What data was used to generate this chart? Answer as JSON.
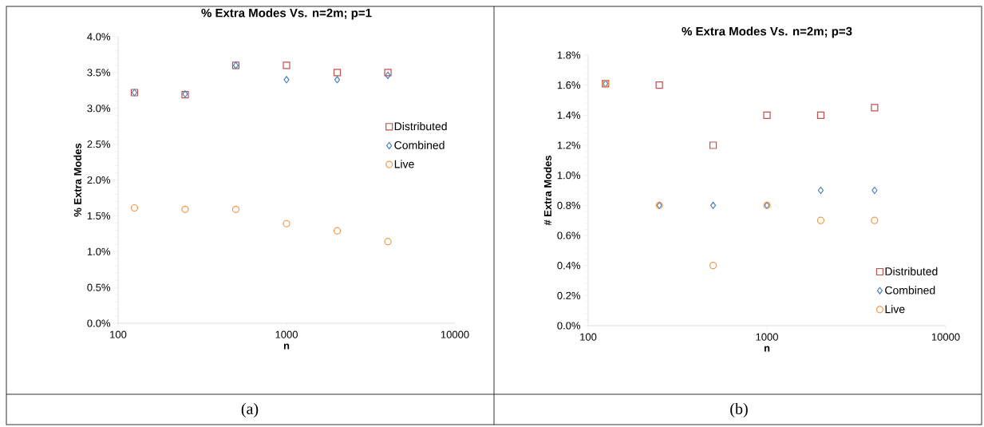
{
  "chart_data": [
    {
      "type": "scatter",
      "title": "% Extra Modes Vs. n=2m; p=1",
      "xlabel": "n",
      "ylabel": "% Extra Modes",
      "log": "x",
      "x": [
        125,
        250,
        500,
        1000,
        2000,
        4000
      ],
      "series": [
        {
          "name": "Distributed",
          "color": "#c0504d",
          "marker": "square",
          "values": [
            3.22,
            3.19,
            3.6,
            3.6,
            3.5,
            3.5
          ]
        },
        {
          "name": "Combined",
          "color": "#4f81bd",
          "marker": "diamond",
          "values": [
            3.22,
            3.2,
            3.6,
            3.4,
            3.4,
            3.46
          ]
        },
        {
          "name": "Live",
          "color": "#f79646",
          "marker": "circle",
          "values": [
            1.61,
            1.59,
            1.59,
            1.39,
            1.29,
            1.14
          ]
        }
      ],
      "xlim": [
        100,
        10000
      ],
      "xticks": [
        100,
        1000,
        10000
      ],
      "ylim": [
        0,
        4
      ],
      "yticks": [
        {
          "value": 0,
          "label": "0.0%"
        },
        {
          "value": 0.5,
          "label": "0.5%"
        },
        {
          "value": 1,
          "label": "1.0%"
        },
        {
          "value": 1.5,
          "label": "1.5%"
        },
        {
          "value": 2,
          "label": "2.0%"
        },
        {
          "value": 2.5,
          "label": "2.5%"
        },
        {
          "value": 3,
          "label": "3.0%"
        },
        {
          "value": 3.5,
          "label": "3.5%"
        },
        {
          "value": 4,
          "label": "4.0%"
        }
      ],
      "legend": "right",
      "grid": false,
      "annotations": [
        "(a)"
      ]
    },
    {
      "type": "scatter",
      "title": "% Extra Modes Vs. n=2m; p=3",
      "xlabel": "n",
      "ylabel": "# Extra Modes",
      "log": "x",
      "x": [
        125,
        250,
        500,
        1000,
        2000,
        4000
      ],
      "series": [
        {
          "name": "Distributed",
          "color": "#c0504d",
          "marker": "square",
          "values": [
            1.61,
            1.6,
            1.2,
            1.4,
            1.4,
            1.45
          ]
        },
        {
          "name": "Combined",
          "color": "#4f81bd",
          "marker": "diamond",
          "values": [
            1.61,
            0.8,
            0.8,
            0.8,
            0.9,
            0.9
          ]
        },
        {
          "name": "Live",
          "color": "#f79646",
          "marker": "circle",
          "values": [
            1.61,
            0.8,
            0.4,
            0.8,
            0.7,
            0.7
          ]
        }
      ],
      "xlim": [
        100,
        10000
      ],
      "xticks": [
        100,
        1000,
        10000
      ],
      "ylim": [
        0,
        1.8
      ],
      "yticks": [
        {
          "value": 0,
          "label": "0.0%"
        },
        {
          "value": 0.2,
          "label": "0.2%"
        },
        {
          "value": 0.4,
          "label": "0.4%"
        },
        {
          "value": 0.6,
          "label": "0.6%"
        },
        {
          "value": 0.8,
          "label": "0.8%"
        },
        {
          "value": 1,
          "label": "1.0%"
        },
        {
          "value": 1.2,
          "label": "1.2%"
        },
        {
          "value": 1.4,
          "label": "1.4%"
        },
        {
          "value": 1.6,
          "label": "1.6%"
        },
        {
          "value": 1.8,
          "label": "1.8%"
        }
      ],
      "legend": "bottom right",
      "grid": false,
      "annotations": [
        "(b)"
      ]
    }
  ]
}
